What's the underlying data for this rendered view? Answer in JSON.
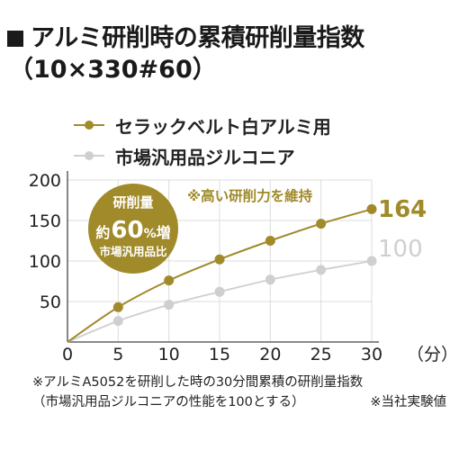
{
  "title": {
    "line1": "アルミ研削時の累積研削量指数",
    "line2": "（10×330#60）"
  },
  "legend": [
    {
      "label": "セラックベルト白アルミ用",
      "color": "#a08a2a"
    },
    {
      "label": "市場汎用品ジルコニア",
      "color": "#cfcfcf"
    }
  ],
  "badge": {
    "line1": "研削量",
    "line2_prefix": "約",
    "line2_value": "60",
    "line2_unit": "%",
    "line2_suffix": "増",
    "line3": "市場汎用品比",
    "color": "#a08a2a"
  },
  "callout": "※高い研削力を維持",
  "end_labels": {
    "gold": "164",
    "gray": "100"
  },
  "footnotes": {
    "line1": "※アルミA5052を研削した時の30分間累積の研削量指数",
    "line2_left": "（市場汎用品ジルコニアの性能を100とする）",
    "line2_right": "※当社実験値"
  },
  "chart_data": {
    "type": "line",
    "x": [
      0,
      5,
      10,
      15,
      20,
      25,
      30
    ],
    "xlabel": "（分）",
    "xlim": [
      0,
      30
    ],
    "ylim": [
      0,
      200
    ],
    "xticks": [
      "0",
      "5",
      "10",
      "15",
      "20",
      "25",
      "30"
    ],
    "yticks": [
      "50",
      "100",
      "150",
      "200"
    ],
    "grid": true,
    "series": [
      {
        "name": "セラックベルト白アルミ用",
        "values": [
          0,
          43,
          76,
          102,
          125,
          146,
          164
        ],
        "color": "#a08a2a"
      },
      {
        "name": "市場汎用品ジルコニア",
        "values": [
          0,
          26,
          46,
          62,
          77,
          89,
          100
        ],
        "color": "#cfcfcf"
      }
    ]
  }
}
